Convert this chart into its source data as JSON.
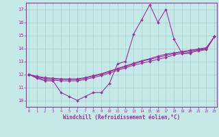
{
  "xlabel": "Windchill (Refroidissement éolien,°C)",
  "background_color": "#c5e8e8",
  "grid_color": "#a8cece",
  "line_color": "#993399",
  "axis_color": "#993399",
  "xlim": [
    0,
    23
  ],
  "ylim": [
    9.5,
    17.5
  ],
  "xticks": [
    0,
    1,
    2,
    3,
    4,
    5,
    6,
    7,
    8,
    9,
    10,
    11,
    12,
    13,
    14,
    15,
    16,
    17,
    18,
    19,
    20,
    21,
    22,
    23
  ],
  "yticks": [
    10,
    11,
    12,
    13,
    14,
    15,
    16,
    17
  ],
  "series1_y": [
    12.0,
    11.7,
    11.5,
    11.5,
    10.6,
    10.3,
    10.0,
    10.3,
    10.6,
    10.6,
    11.3,
    12.8,
    13.0,
    15.1,
    16.2,
    17.35,
    16.0,
    17.0,
    14.7,
    13.6,
    13.6,
    13.9,
    13.9,
    14.9
  ],
  "series2_y": [
    12.0,
    11.75,
    11.6,
    11.55,
    11.5,
    11.5,
    11.5,
    11.6,
    11.75,
    11.9,
    12.1,
    12.3,
    12.5,
    12.7,
    12.85,
    13.0,
    13.15,
    13.3,
    13.5,
    13.6,
    13.7,
    13.8,
    13.9,
    14.9
  ],
  "series3_y": [
    12.0,
    11.8,
    11.7,
    11.65,
    11.6,
    11.6,
    11.6,
    11.7,
    11.85,
    12.0,
    12.2,
    12.4,
    12.6,
    12.8,
    13.0,
    13.15,
    13.3,
    13.45,
    13.6,
    13.7,
    13.8,
    13.9,
    14.0,
    14.9
  ],
  "series4_y": [
    12.0,
    11.85,
    11.75,
    11.7,
    11.65,
    11.65,
    11.65,
    11.75,
    11.9,
    12.05,
    12.25,
    12.45,
    12.65,
    12.85,
    13.05,
    13.2,
    13.4,
    13.55,
    13.65,
    13.75,
    13.85,
    13.95,
    14.05,
    14.9
  ]
}
